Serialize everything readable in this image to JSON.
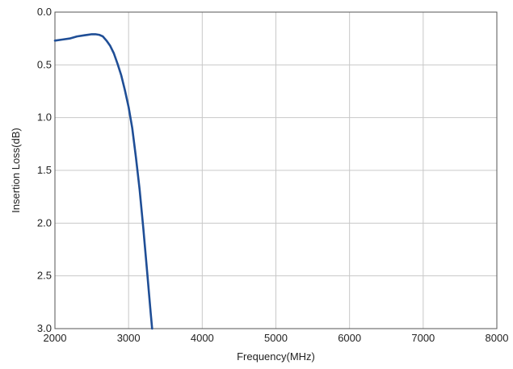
{
  "chart_data": {
    "type": "line",
    "title": "",
    "xlabel": "Frequency(MHz)",
    "ylabel": "Insertion Loss(dB)",
    "xlim": [
      2000,
      8000
    ],
    "ylim": [
      0.0,
      3.0
    ],
    "y_inverted": true,
    "grid": true,
    "x_ticks": [
      2000,
      3000,
      4000,
      5000,
      6000,
      7000,
      8000
    ],
    "x_tick_labels": [
      "2000",
      "3000",
      "4000",
      "5000",
      "6000",
      "7000",
      "8000"
    ],
    "y_ticks": [
      0.0,
      0.5,
      1.0,
      1.5,
      2.0,
      2.5,
      3.0
    ],
    "y_tick_labels": [
      "0.0",
      "0.5",
      "1.0",
      "1.5",
      "2.0",
      "2.5",
      "3.0"
    ],
    "series": [
      {
        "color": "#1f4e96",
        "x": [
          2000,
          2100,
          2200,
          2300,
          2400,
          2450,
          2500,
          2550,
          2600,
          2650,
          2700,
          2750,
          2800,
          2850,
          2900,
          2950,
          3000,
          3050,
          3100,
          3150,
          3200,
          3250,
          3300,
          3320
        ],
        "y": [
          0.27,
          0.26,
          0.25,
          0.23,
          0.22,
          0.215,
          0.21,
          0.21,
          0.215,
          0.23,
          0.27,
          0.32,
          0.39,
          0.49,
          0.6,
          0.74,
          0.9,
          1.1,
          1.38,
          1.68,
          2.05,
          2.45,
          2.85,
          3.0
        ]
      }
    ]
  }
}
